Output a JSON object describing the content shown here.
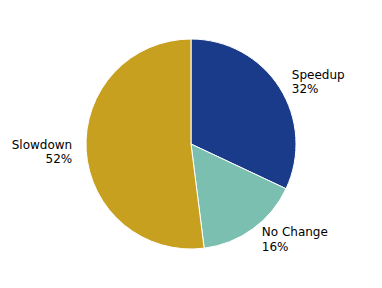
{
  "chart_data": {
    "type": "pie",
    "categories": [
      "Speedup",
      "No Change",
      "Slowdown"
    ],
    "values": [
      32,
      16,
      52
    ],
    "value_labels": [
      "32%",
      "16%",
      "52%"
    ],
    "colors": [
      "#1a3a8a",
      "#7abfb0",
      "#c8a020"
    ],
    "data_labels": true
  }
}
